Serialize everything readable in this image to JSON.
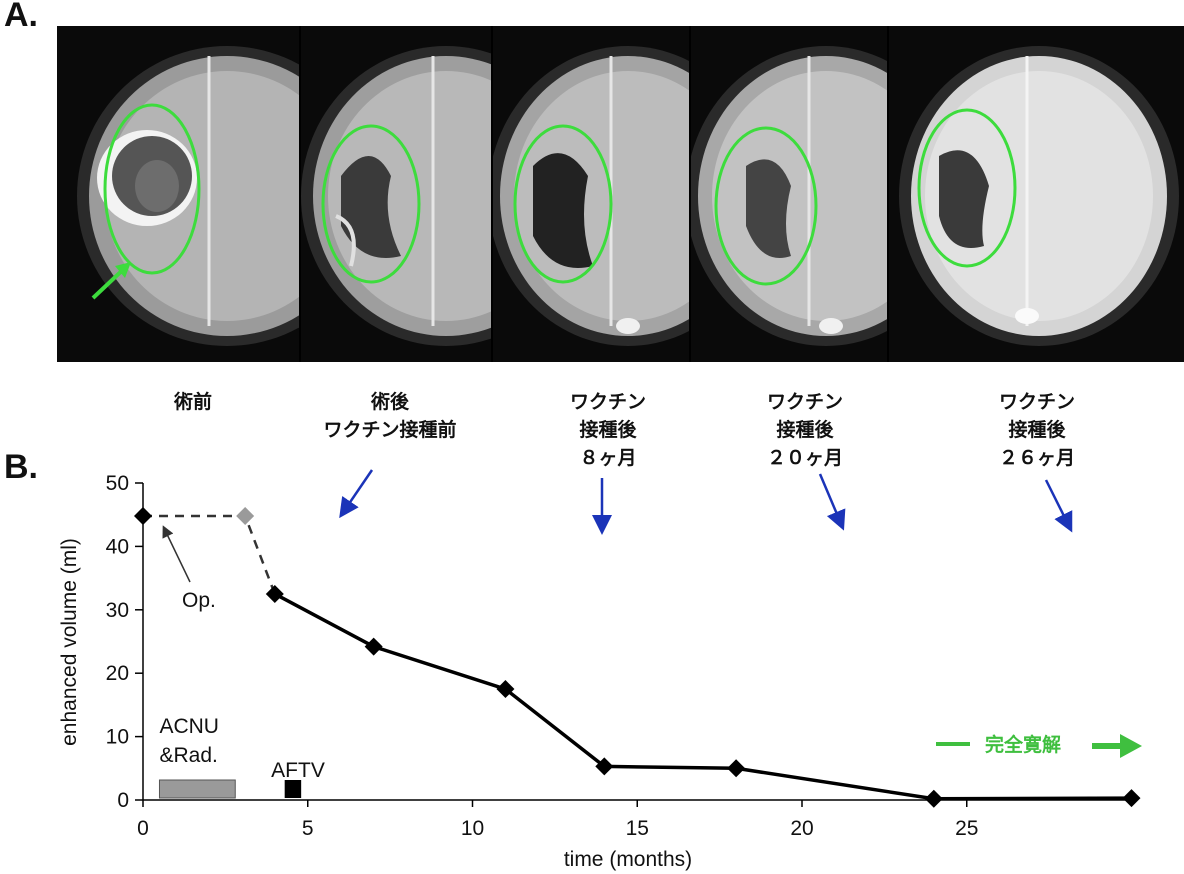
{
  "panel_a_label": "A.",
  "panel_b_label": "B.",
  "mri_captions": [
    "術前",
    "術後\nワクチン接種前",
    "ワクチン\n接種後\n８ヶ月",
    "ワクチン\n接種後\n２０ヶ月",
    "ワクチン\n接種後\n２６ヶ月"
  ],
  "colors": {
    "line": "#000000",
    "dashed_point": "#9a9a9a",
    "pointer_arrow": "#1b34b8",
    "outline": "#3ddc3d",
    "remission": "#3fbf3f",
    "acnu_bar": "#9a9a9a",
    "aftv_bar": "#000000"
  },
  "chart_data": {
    "type": "line",
    "xlabel": "time (months)",
    "ylabel": "enhanced volume (ml)",
    "xlim": [
      0,
      30
    ],
    "ylim": [
      0,
      50
    ],
    "xticks": [
      0,
      5,
      10,
      15,
      20,
      25
    ],
    "yticks": [
      0,
      10,
      20,
      30,
      40,
      50
    ],
    "grid": false,
    "dashed_segment": [
      {
        "x": 0,
        "y": 44.8
      },
      {
        "x": 3.1,
        "y": 44.8
      },
      {
        "x": 4.0,
        "y": 32.5
      }
    ],
    "solid_segment": [
      {
        "x": 4.0,
        "y": 32.5
      },
      {
        "x": 7.0,
        "y": 24.2
      },
      {
        "x": 11.0,
        "y": 17.5
      },
      {
        "x": 14.0,
        "y": 5.3
      },
      {
        "x": 18.0,
        "y": 5.0
      },
      {
        "x": 24.0,
        "y": 0.2
      },
      {
        "x": 30.0,
        "y": 0.3
      }
    ],
    "treatments": [
      {
        "label": "ACNU\n&Rad.",
        "x_start": 0.5,
        "x_end": 2.8
      },
      {
        "label": "AFTV",
        "x_start": 4.3,
        "x_end": 4.8
      }
    ],
    "annotations": {
      "op_label": "Op.",
      "remission_label": "完全寛解"
    }
  }
}
